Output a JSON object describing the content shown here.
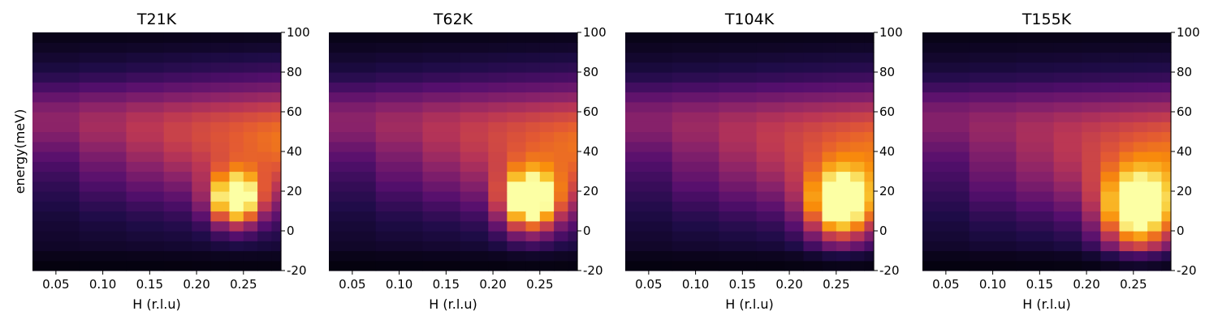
{
  "figure": {
    "shared_ylabel": "energy(meV)",
    "colormap": "inferno",
    "y_axis_side": "right"
  },
  "chart_data": [
    {
      "type": "heatmap",
      "title": "T21K",
      "xlabel": "H (r.l.u)",
      "ylabel": "energy(meV)",
      "xlim": [
        0.025,
        0.29
      ],
      "ylim": [
        -20,
        100
      ],
      "xticks": [
        "0.05",
        "0.10",
        "0.15",
        "0.20",
        "0.25"
      ],
      "yticks": [
        "-20",
        "0",
        "20",
        "40",
        "60",
        "80",
        "100"
      ],
      "h_edges": [
        0.025,
        0.075,
        0.125,
        0.165,
        0.195,
        0.215,
        0.235,
        0.25,
        0.265,
        0.28,
        0.29
      ],
      "energy_bin_meV": 5,
      "peak": {
        "h": 0.242,
        "energy": 16,
        "intensity": 1.0
      }
    },
    {
      "type": "heatmap",
      "title": "T62K",
      "xlabel": "H (r.l.u)",
      "ylabel": "",
      "xlim": [
        0.025,
        0.29
      ],
      "ylim": [
        -20,
        100
      ],
      "xticks": [
        "0.05",
        "0.10",
        "0.15",
        "0.20",
        "0.25"
      ],
      "yticks": [
        "-20",
        "0",
        "20",
        "40",
        "60",
        "80",
        "100"
      ],
      "h_edges": [
        0.025,
        0.075,
        0.125,
        0.165,
        0.195,
        0.215,
        0.235,
        0.25,
        0.265,
        0.28,
        0.29
      ],
      "energy_bin_meV": 5,
      "peak": {
        "h": 0.24,
        "energy": 15,
        "intensity": 1.0
      }
    },
    {
      "type": "heatmap",
      "title": "T104K",
      "xlabel": "H (r.l.u)",
      "ylabel": "",
      "xlim": [
        0.025,
        0.29
      ],
      "ylim": [
        -20,
        100
      ],
      "xticks": [
        "0.05",
        "0.10",
        "0.15",
        "0.20",
        "0.25"
      ],
      "yticks": [
        "-20",
        "0",
        "20",
        "40",
        "60",
        "80",
        "100"
      ],
      "h_edges": [
        0.025,
        0.075,
        0.125,
        0.165,
        0.195,
        0.215,
        0.235,
        0.25,
        0.265,
        0.28,
        0.29
      ],
      "energy_bin_meV": 5,
      "peak": {
        "h": 0.255,
        "energy": 13,
        "intensity": 0.97
      }
    },
    {
      "type": "heatmap",
      "title": "T155K",
      "xlabel": "H (r.l.u)",
      "ylabel": "",
      "xlim": [
        0.025,
        0.29
      ],
      "ylim": [
        -20,
        100
      ],
      "xticks": [
        "0.05",
        "0.10",
        "0.15",
        "0.20",
        "0.25"
      ],
      "yticks": [
        "-20",
        "0",
        "20",
        "40",
        "60",
        "80",
        "100"
      ],
      "h_edges": [
        0.025,
        0.075,
        0.125,
        0.165,
        0.195,
        0.215,
        0.235,
        0.25,
        0.265,
        0.28,
        0.29
      ],
      "energy_bin_meV": 5,
      "peak": {
        "h": 0.255,
        "energy": 10,
        "intensity": 0.95
      }
    }
  ]
}
